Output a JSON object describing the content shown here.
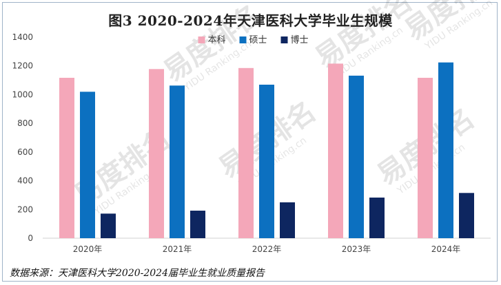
{
  "title": "图3  2020-2024年天津医科大学毕业生规模",
  "source": "数据来源：天津医科大学2020-2024届毕业生就业质量报告",
  "watermark": {
    "logo_text": "易度排名",
    "url_text": "YIDU Ranking.cn"
  },
  "chart_data": {
    "type": "bar",
    "title": "图3  2020-2024年天津医科大学毕业生规模",
    "categories": [
      "2020年",
      "2021年",
      "2022年",
      "2023年",
      "2024年"
    ],
    "series": [
      {
        "name": "本科",
        "color": "#f4a7b9",
        "values": [
          1117,
          1178,
          1185,
          1216,
          1117
        ]
      },
      {
        "name": "硕士",
        "color": "#0c70c0",
        "values": [
          1020,
          1063,
          1069,
          1132,
          1224
        ]
      },
      {
        "name": "博士",
        "color": "#0e2660",
        "values": [
          171,
          192,
          250,
          283,
          315
        ]
      }
    ],
    "ylim": [
      0,
      1400
    ],
    "yticks": [
      0,
      200,
      400,
      600,
      800,
      1000,
      1200,
      1400
    ],
    "grid": false,
    "legend_position": "top-center"
  }
}
